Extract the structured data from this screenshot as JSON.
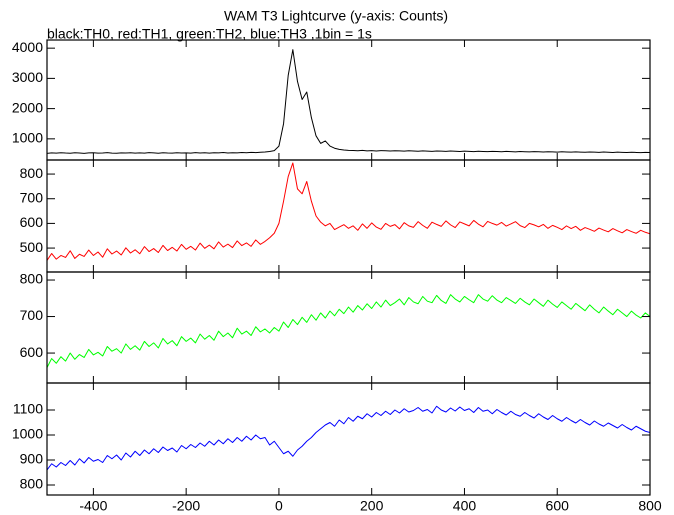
{
  "chart_data": {
    "type": "line",
    "title": "WAM T3 Lightcurve (y-axis: Counts)",
    "subtitle": "black:TH0, red:TH1, green:TH2, blue:TH3 ,1bin = 1s",
    "xlim": [
      -500,
      800
    ],
    "xticks": [
      -400,
      -200,
      0,
      200,
      400,
      600,
      800
    ],
    "x": [
      -500,
      -490,
      -480,
      -470,
      -460,
      -450,
      -440,
      -430,
      -420,
      -410,
      -400,
      -390,
      -380,
      -370,
      -360,
      -350,
      -340,
      -330,
      -320,
      -310,
      -300,
      -290,
      -280,
      -270,
      -260,
      -250,
      -240,
      -230,
      -220,
      -210,
      -200,
      -190,
      -180,
      -170,
      -160,
      -150,
      -140,
      -130,
      -120,
      -110,
      -100,
      -90,
      -80,
      -70,
      -60,
      -50,
      -40,
      -30,
      -20,
      -10,
      0,
      10,
      20,
      30,
      40,
      50,
      60,
      70,
      80,
      90,
      100,
      110,
      120,
      130,
      140,
      150,
      160,
      170,
      180,
      190,
      200,
      210,
      220,
      230,
      240,
      250,
      260,
      270,
      280,
      290,
      300,
      310,
      320,
      330,
      340,
      350,
      360,
      370,
      380,
      390,
      400,
      410,
      420,
      430,
      440,
      450,
      460,
      470,
      480,
      490,
      500,
      510,
      520,
      530,
      540,
      550,
      560,
      570,
      580,
      590,
      600,
      610,
      620,
      630,
      640,
      650,
      660,
      670,
      680,
      690,
      700,
      710,
      720,
      730,
      740,
      750,
      760,
      770,
      780,
      790,
      800
    ],
    "panels": [
      {
        "ylim": [
          300,
          4270
        ],
        "yticks": [
          1000,
          2000,
          3000,
          4000
        ],
        "series": [
          {
            "color": "#000000",
            "values": [
              520,
              535,
              528,
              541,
              530,
              525,
              538,
              532,
              519,
              536,
              540,
              527,
              533,
              545,
              529,
              522,
              537,
              531,
              540,
              526,
              534,
              529,
              543,
              536,
              524,
              538,
              530,
              527,
              541,
              533,
              536,
              529,
              544,
              531,
              538,
              527,
              540,
              535,
              546,
              532,
              541,
              537,
              548,
              539,
              552,
              545,
              558,
              566,
              580,
              610,
              760,
              1500,
              3100,
              3950,
              2900,
              2300,
              2550,
              1700,
              1100,
              850,
              930,
              760,
              690,
              650,
              630,
              620,
              615,
              608,
              620,
              603,
              612,
              598,
              610,
              605,
              596,
              607,
              600,
              593,
              604,
              598,
              590,
              601,
              595,
              587,
              598,
              592,
              585,
              596,
              589,
              582,
              593,
              586,
              579,
              590,
              583,
              576,
              587,
              580,
              573,
              584,
              577,
              570,
              581,
              574,
              568,
              578,
              571,
              565,
              575,
              568,
              562,
              572,
              565,
              559,
              569,
              562,
              556,
              566,
              559,
              553,
              563,
              556,
              550,
              560,
              553,
              547,
              557,
              550,
              544,
              554,
              547
            ]
          }
        ]
      },
      {
        "ylim": [
          403,
          857
        ],
        "yticks": [
          500,
          600,
          700,
          800
        ],
        "series": [
          {
            "color": "#ff0000",
            "values": [
              450,
              478,
              455,
              470,
              462,
              489,
              458,
              475,
              466,
              492,
              470,
              484,
              463,
              497,
              476,
              488,
              472,
              501,
              480,
              493,
              477,
              506,
              486,
              498,
              482,
              511,
              490,
              503,
              488,
              515,
              495,
              507,
              492,
              520,
              499,
              512,
              497,
              525,
              504,
              516,
              502,
              529,
              510,
              521,
              507,
              533,
              515,
              527,
              542,
              560,
              600,
              690,
              790,
              845,
              740,
              720,
              770,
              690,
              630,
              605,
              590,
              600,
              575,
              585,
              595,
              580,
              590,
              572,
              598,
              580,
              602,
              585,
              576,
              600,
              588,
              595,
              578,
              603,
              590,
              584,
              607,
              592,
              580,
              605,
              596,
              588,
              610,
              594,
              583,
              606,
              598,
              590,
              612,
              597,
              586,
              608,
              600,
              593,
              604,
              589,
              598,
              607,
              591,
              583,
              600,
              594,
              586,
              596,
              580,
              592,
              584,
              575,
              590,
              579,
              588,
              572,
              583,
              576,
              568,
              581,
              573,
              566,
              579,
              570,
              562,
              575,
              567,
              560,
              572,
              564,
              558
            ]
          }
        ]
      },
      {
        "ylim": [
          518,
          822
        ],
        "yticks": [
          600,
          700,
          800
        ],
        "series": [
          {
            "color": "#00ff00",
            "values": [
              560,
              585,
              572,
              590,
              578,
              600,
              583,
              596,
              588,
              610,
              595,
              602,
              592,
              618,
              605,
              612,
              600,
              625,
              610,
              620,
              608,
              632,
              618,
              628,
              614,
              640,
              625,
              634,
              620,
              645,
              632,
              641,
              628,
              652,
              638,
              648,
              635,
              660,
              645,
              655,
              642,
              668,
              652,
              660,
              648,
              672,
              658,
              666,
              655,
              670,
              660,
              685,
              670,
              692,
              678,
              698,
              684,
              705,
              690,
              710,
              696,
              715,
              702,
              720,
              708,
              726,
              712,
              730,
              718,
              735,
              722,
              740,
              726,
              745,
              730,
              738,
              748,
              732,
              752,
              740,
              735,
              755,
              742,
              738,
              758,
              744,
              736,
              760,
              748,
              740,
              755,
              746,
              738,
              760,
              748,
              742,
              757,
              745,
              738,
              752,
              744,
              736,
              750,
              740,
              732,
              748,
              738,
              728,
              745,
              734,
              725,
              740,
              730,
              720,
              736,
              726,
              716,
              732,
              720,
              710,
              726,
              715,
              705,
              720,
              710,
              700,
              715,
              704,
              696,
              710,
              700
            ]
          }
        ]
      },
      {
        "ylim": [
          760,
          1208
        ],
        "yticks": [
          800,
          900,
          1000,
          1100
        ],
        "series": [
          {
            "color": "#0000ff",
            "values": [
              860,
              885,
              872,
              890,
              878,
              898,
              880,
              905,
              888,
              910,
              895,
              902,
              890,
              918,
              905,
              920,
              900,
              928,
              912,
              935,
              918,
              940,
              925,
              945,
              930,
              952,
              938,
              948,
              932,
              958,
              945,
              962,
              950,
              968,
              955,
              975,
              960,
              980,
              965,
              985,
              970,
              990,
              975,
              995,
              980,
              1000,
              985,
              990,
              960,
              975,
              950,
              925,
              935,
              915,
              940,
              955,
              975,
              990,
              1010,
              1025,
              1040,
              1050,
              1035,
              1060,
              1045,
              1070,
              1055,
              1075,
              1065,
              1085,
              1072,
              1090,
              1078,
              1095,
              1082,
              1100,
              1088,
              1105,
              1092,
              1098,
              1110,
              1095,
              1102,
              1088,
              1115,
              1100,
              1092,
              1108,
              1096,
              1112,
              1098,
              1105,
              1090,
              1110,
              1095,
              1100,
              1085,
              1102,
              1090,
              1080,
              1095,
              1082,
              1075,
              1090,
              1078,
              1068,
              1085,
              1072,
              1062,
              1078,
              1065,
              1055,
              1070,
              1058,
              1048,
              1062,
              1050,
              1040,
              1056,
              1044,
              1035,
              1048,
              1038,
              1028,
              1042,
              1030,
              1020,
              1035,
              1025,
              1015,
              1010
            ]
          }
        ]
      }
    ]
  }
}
